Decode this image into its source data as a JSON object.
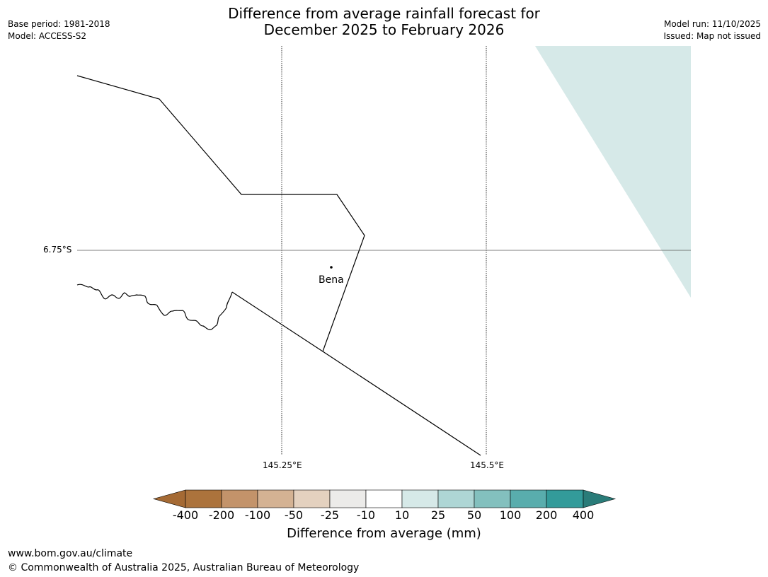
{
  "header": {
    "title_line1": "Difference from average rainfall forecast for",
    "title_line2": "December 2025 to February 2026",
    "base_period": "Base period: 1981-2018",
    "model": "Model: ACCESS-S2",
    "model_run": "Model run: 11/10/2025",
    "issued": "Issued: Map not issued"
  },
  "map": {
    "graticule": {
      "latitude_label": "6.75°S",
      "longitude_labels": [
        "145.25°E",
        "145.5°E"
      ]
    },
    "place": {
      "name": "Bena"
    },
    "shaded_region_category": "10 to 25",
    "shaded_color": "#d6e9e8"
  },
  "colorbar": {
    "title": "Difference from average (mm)",
    "ticks": [
      "-400",
      "-200",
      "-100",
      "-50",
      "-25",
      "-10",
      "10",
      "25",
      "50",
      "100",
      "200",
      "400"
    ],
    "colors": [
      "#a56a34",
      "#ac733c",
      "#c3936a",
      "#d4b293",
      "#e4d1bf",
      "#ecebe9",
      "#ffffff",
      "#d6e9e8",
      "#aed6d5",
      "#83c0be",
      "#59adad",
      "#339b9a",
      "#2a7c79"
    ]
  },
  "footer": {
    "url": "www.bom.gov.au/climate",
    "copyright": "© Commonwealth of Australia 2025, Australian Bureau of Meteorology"
  }
}
